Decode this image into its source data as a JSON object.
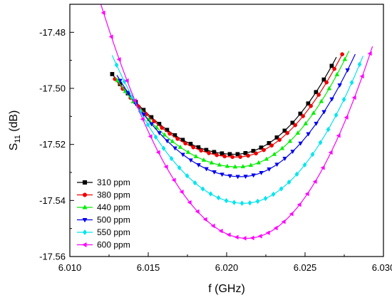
{
  "chart_data": {
    "type": "line",
    "title": "",
    "xlabel": "f (GHz)",
    "ylabel_main": "S",
    "ylabel_sub": "11",
    "ylabel_unit": " (dB)",
    "xlim": [
      6.01,
      6.03
    ],
    "ylim": [
      -17.56,
      -17.47
    ],
    "xticks": [
      6.01,
      6.015,
      6.02,
      6.025,
      6.03
    ],
    "xtick_labels": [
      "6.010",
      "6.015",
      "6.020",
      "6.025",
      "6.030"
    ],
    "yticks": [
      -17.48,
      -17.5,
      -17.52,
      -17.54,
      -17.56
    ],
    "ytick_labels": [
      "-17.48",
      "-17.50",
      "-17.52",
      "-17.54",
      "-17.56"
    ],
    "grid": false,
    "legend_position": "bottom-left",
    "series": [
      {
        "name": "310 ppm",
        "color": "#000000",
        "marker": "square",
        "min_x": 6.0205,
        "min_y": -17.5235,
        "k_left": 0.00047,
        "k_right": 0.00082,
        "x_start": 6.0127,
        "x_end": 6.027
      },
      {
        "name": "380 ppm",
        "color": "#ee0000",
        "marker": "circle",
        "min_x": 6.0206,
        "min_y": -17.5245,
        "k_left": 0.000466,
        "k_right": 0.0008,
        "x_start": 6.0128,
        "x_end": 6.0274
      },
      {
        "name": "440 ppm",
        "color": "#00ee00",
        "marker": "triangle-up",
        "min_x": 6.0207,
        "min_y": -17.528,
        "k_left": 0.000525,
        "k_right": 0.00082,
        "x_start": 6.0129,
        "x_end": 6.0278
      },
      {
        "name": "500 ppm",
        "color": "#0000ee",
        "marker": "triangle-down",
        "min_x": 6.0209,
        "min_y": -17.5315,
        "k_left": 0.00058,
        "k_right": 0.00082,
        "x_start": 6.013,
        "x_end": 6.0282
      },
      {
        "name": "550 ppm",
        "color": "#00e5ee",
        "marker": "diamond",
        "min_x": 6.0211,
        "min_y": -17.541,
        "k_left": 0.000748,
        "k_right": 0.00091,
        "x_start": 6.0127,
        "x_end": 6.0287
      },
      {
        "name": "600 ppm",
        "color": "#ff00ff",
        "marker": "triangle-left",
        "min_x": 6.0213,
        "min_y": -17.5535,
        "k_left": 0.000961,
        "k_right": 0.00107,
        "x_start": 6.0113,
        "x_end": 6.0293
      }
    ]
  }
}
